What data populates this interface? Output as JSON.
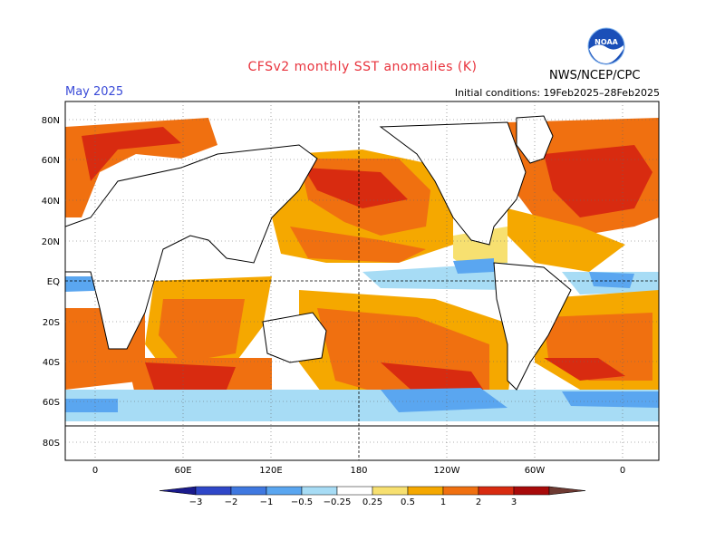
{
  "title": "CFSv2 monthly SST anomalies (K)",
  "month_label": "May 2025",
  "initial_conditions": "Initial conditions: 19Feb2025–28Feb2025",
  "agency": "NWS/NCEP/CPC",
  "logo_text": "NOAA",
  "map": {
    "lat_labels": [
      "80N",
      "60N",
      "40N",
      "20N",
      "EQ",
      "20S",
      "40S",
      "60S",
      "80S"
    ],
    "lon_labels": [
      "0",
      "60E",
      "120E",
      "180",
      "120W",
      "60W",
      "0"
    ]
  },
  "legend": {
    "tick_labels": [
      "−3",
      "−2",
      "−1",
      "−0.5",
      "−0.25",
      "0.25",
      "0.5",
      "1",
      "2",
      "3"
    ],
    "colors": [
      "#1a1a8c",
      "#2f47c8",
      "#3f78e0",
      "#5aa6f0",
      "#a7dcf5",
      "#ffffff",
      "#f7e070",
      "#f5a800",
      "#f07010",
      "#d82b10",
      "#a80a0a",
      "#6e3a32"
    ]
  }
}
